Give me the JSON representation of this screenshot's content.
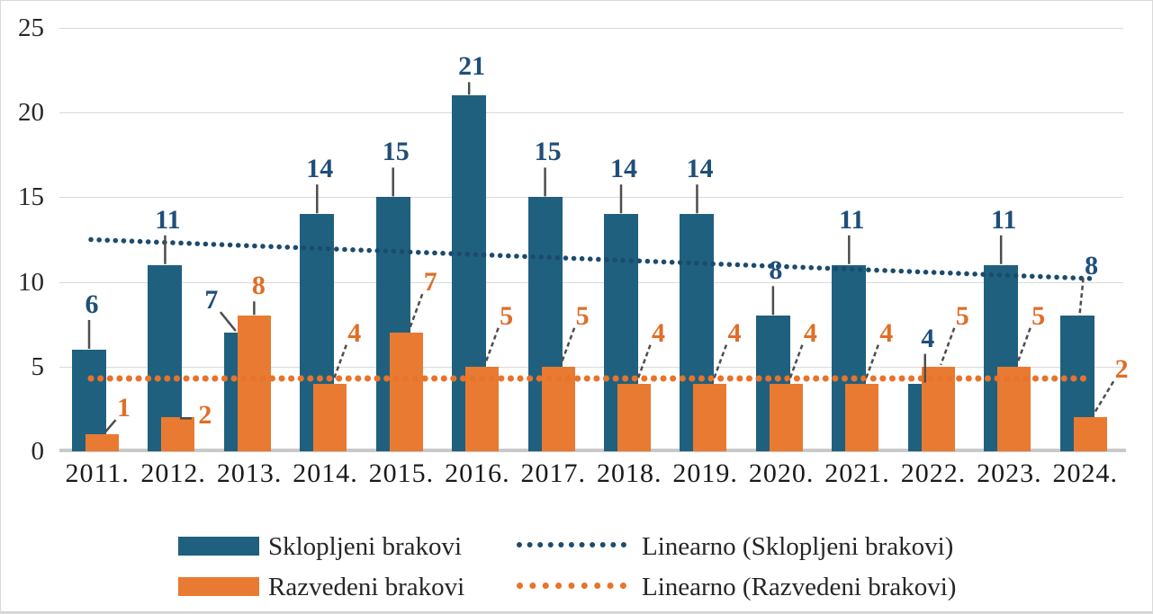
{
  "chart_data": {
    "type": "bar",
    "categories": [
      "2011.",
      "2012.",
      "2013.",
      "2014.",
      "2015.",
      "2016.",
      "2017.",
      "2018.",
      "2019.",
      "2020.",
      "2021.",
      "2022.",
      "2023.",
      "2024."
    ],
    "series": [
      {
        "name": "Sklopljeni brakovi",
        "color": "#20607F",
        "label_color": "#1F4E79",
        "values": [
          6,
          11,
          7,
          14,
          15,
          21,
          15,
          14,
          14,
          8,
          11,
          4,
          11,
          8
        ]
      },
      {
        "name": "Razvedeni brakovi",
        "color": "#E97A31",
        "label_color": "#E06D28",
        "values": [
          1,
          2,
          8,
          4,
          7,
          5,
          5,
          4,
          4,
          4,
          4,
          5,
          5,
          2
        ]
      }
    ],
    "trendlines": [
      {
        "name": "Linearno (Sklopljeni brakovi)",
        "color": "#1C4B6E",
        "style": "dotted",
        "start_value": 12.5,
        "end_value": 10.2
      },
      {
        "name": "Linearno (Razvedeni brakovi)",
        "color": "#E8732A",
        "style": "dotted",
        "start_value": 4.3,
        "end_value": 4.3
      }
    ],
    "ylim": [
      0,
      25
    ],
    "yticks": [
      0,
      5,
      10,
      15,
      20,
      25
    ],
    "grid": true,
    "legend_position": "bottom",
    "title": "",
    "xlabel": "",
    "ylabel": ""
  },
  "legend": {
    "series1": "Sklopljeni brakovi",
    "series2": "Razvedeni brakovi",
    "trend1": "Linearno (Sklopljeni brakovi)",
    "trend2": "Linearno (Razvedeni brakovi)"
  }
}
